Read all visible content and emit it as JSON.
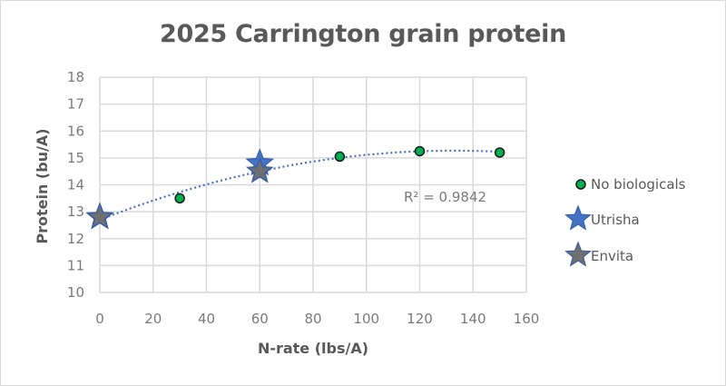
{
  "chart": {
    "title": "2025 Carrington grain protein",
    "xlabel": "N-rate (lbs/A)",
    "ylabel": "Protein (bu/A)",
    "r_squared_label": "R² = 0.9842",
    "x_ticks": [
      "0",
      "20",
      "40",
      "60",
      "80",
      "100",
      "120",
      "140",
      "160"
    ],
    "y_ticks": [
      "10",
      "11",
      "12",
      "13",
      "14",
      "15",
      "16",
      "17",
      "18"
    ],
    "legend": [
      {
        "label": "No biologicals",
        "marker": "circle",
        "color": "#00b050"
      },
      {
        "label": "Utrisha",
        "marker": "star",
        "color": "#4472c4"
      },
      {
        "label": "Envita",
        "marker": "star",
        "color": "#6f6f6f"
      }
    ]
  },
  "chart_data": {
    "type": "scatter",
    "title": "2025 Carrington grain protein",
    "xlabel": "N-rate (lbs/A)",
    "ylabel": "Protein (bu/A)",
    "xlim": [
      0,
      160
    ],
    "ylim": [
      10,
      18
    ],
    "x_ticks": [
      0,
      20,
      40,
      60,
      80,
      100,
      120,
      140,
      160
    ],
    "y_ticks": [
      10,
      11,
      12,
      13,
      14,
      15,
      16,
      17,
      18
    ],
    "grid": true,
    "legend_position": "right",
    "series": [
      {
        "name": "No biologicals",
        "marker": "circle",
        "color": "#00b050",
        "x": [
          0,
          30,
          60,
          90,
          120,
          150
        ],
        "y": [
          12.8,
          13.5,
          14.6,
          15.05,
          15.25,
          15.2
        ]
      },
      {
        "name": "Utrisha",
        "marker": "star",
        "color": "#4472c4",
        "x": [
          0,
          60
        ],
        "y": [
          12.8,
          14.8
        ]
      },
      {
        "name": "Envita",
        "marker": "star",
        "color": "#6f6f6f",
        "x": [
          0,
          60
        ],
        "y": [
          12.8,
          14.5
        ]
      }
    ],
    "trendline": {
      "series": "No biologicals",
      "type": "polynomial",
      "order": 2,
      "style": "dotted",
      "color": "#4472c4",
      "r_squared": 0.9842
    },
    "annotations": [
      "R² = 0.9842"
    ]
  }
}
